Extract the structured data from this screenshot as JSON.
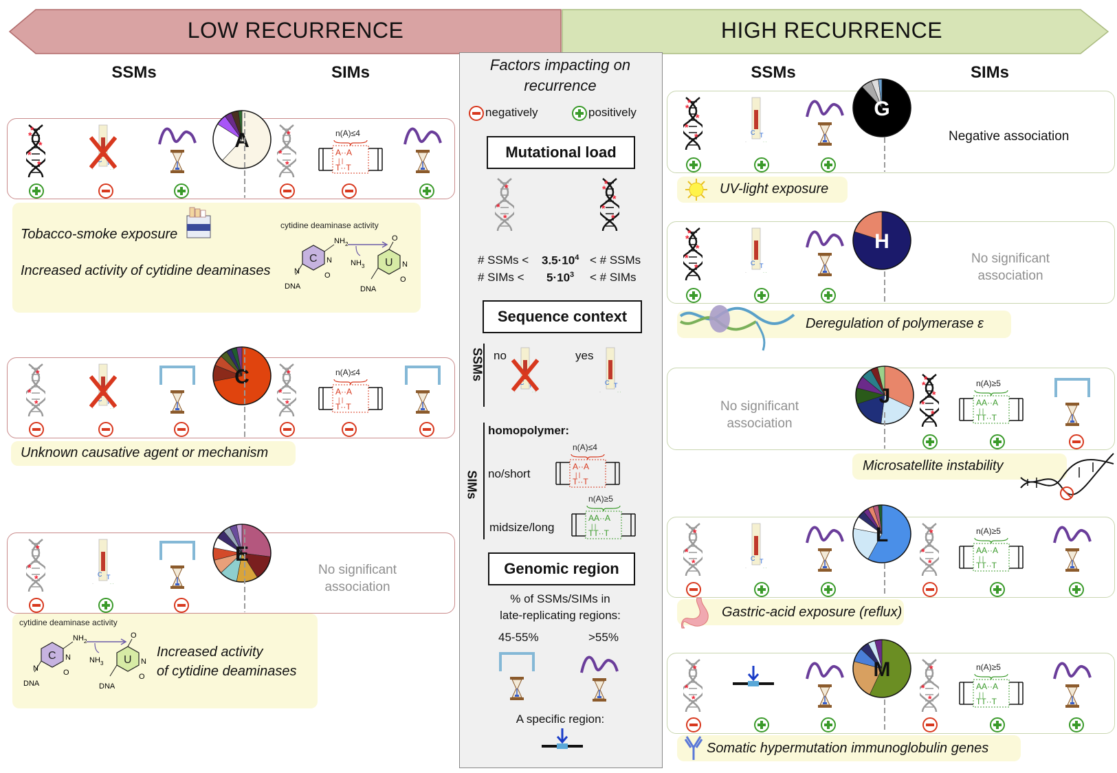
{
  "header": {
    "low": "LOW RECURRENCE",
    "high": "HIGH RECURRENCE"
  },
  "columns": {
    "ssms": "SSMs",
    "sims": "SIMs"
  },
  "colors": {
    "low_banner": "#d9a3a3",
    "high_banner": "#d7e4b6",
    "note_bg": "#fbf9d9",
    "pos": "#3a9a2a",
    "neg": "#d8381e",
    "wave": "#6a3d9a",
    "bracket": "#84b8d6"
  },
  "center": {
    "title": "Factors impacting on recurrence",
    "negatively": "negatively",
    "positively": "positively",
    "mutational_load": "Mutational load",
    "ml_ssms_left": "# SSMs <",
    "ml_ssms_value": "3.5·10",
    "ml_ssms_exp": "4",
    "ml_ssms_right": "< # SSMs",
    "ml_sims_left": "# SIMs  <",
    "ml_sims_value": "5·10",
    "ml_sims_exp": "3",
    "ml_sims_right": "< # SIMs",
    "sequence_context": "Sequence context",
    "ssms_label": "SSMs",
    "sims_label": "SIMs",
    "no": "no",
    "yes": "yes",
    "homopolymer": "homopolymer:",
    "no_short": "no/short",
    "midsize_long": "midsize/long",
    "genomic_region": "Genomic region",
    "gr_text1": "% of SSMs/SIMs in",
    "gr_text2": "late-replicating regions:",
    "range1": "45-55%",
    "range2": ">55%",
    "specific": "A specific region:"
  },
  "homopolymer": {
    "short_label": "n(A)≤4",
    "long_label": "n(A)≥5"
  },
  "signatures": {
    "A": {
      "letter": "A",
      "notes": [
        "Tobacco-smoke exposure",
        "Increased activity of cytidine deaminases"
      ],
      "chem_label": "cytidine deaminase activity",
      "pie": [
        {
          "value": 62,
          "color": "#faf5e6"
        },
        {
          "value": 22,
          "color": "#ffffff"
        },
        {
          "value": 6,
          "color": "#a855f7"
        },
        {
          "value": 4,
          "color": "#6b2a8a"
        },
        {
          "value": 4,
          "color": "#4a3020"
        },
        {
          "value": 2,
          "color": "#2e6b2e"
        }
      ]
    },
    "C": {
      "letter": "C",
      "notes": [
        "Unknown causative agent or mechanism"
      ],
      "pie": [
        {
          "value": 72,
          "color": "#e0440e"
        },
        {
          "value": 9,
          "color": "#8b2a1a"
        },
        {
          "value": 6,
          "color": "#c24a2a"
        },
        {
          "value": 4,
          "color": "#4a5d23"
        },
        {
          "value": 3,
          "color": "#2d2d6b"
        },
        {
          "value": 3,
          "color": "#1f5e2e"
        },
        {
          "value": 3,
          "color": "#7a3a8a"
        }
      ]
    },
    "E": {
      "letter": "E",
      "nosig": "No significant association",
      "notes": [
        "Increased activity of cytidine deaminases"
      ],
      "chem_label": "cytidine deaminase activity",
      "pie": [
        {
          "value": 27,
          "color": "#b4577e"
        },
        {
          "value": 14,
          "color": "#7a1f1f"
        },
        {
          "value": 12,
          "color": "#d9a43a"
        },
        {
          "value": 10,
          "color": "#8ecfcf"
        },
        {
          "value": 8,
          "color": "#e8a07a"
        },
        {
          "value": 7,
          "color": "#d34a2a"
        },
        {
          "value": 6,
          "color": "#ffffff"
        },
        {
          "value": 5,
          "color": "#3b2b6b"
        },
        {
          "value": 4,
          "color": "#9ab"
        },
        {
          "value": 4,
          "color": "#6a4c9c"
        },
        {
          "value": 3,
          "color": "#c9a3d9"
        }
      ]
    },
    "G": {
      "letter": "G",
      "sims_text": "Negative association",
      "notes": [
        "UV-light exposure"
      ],
      "pie": [
        {
          "value": 88,
          "color": "#000000"
        },
        {
          "value": 6,
          "color": "#aaaaaa"
        },
        {
          "value": 4,
          "color": "#dddddd"
        },
        {
          "value": 2,
          "color": "#6aa0d0"
        }
      ]
    },
    "H": {
      "letter": "H",
      "nosig": "No significant association",
      "notes": [
        "Deregulation of polymerase  ε"
      ],
      "pie": [
        {
          "value": 80,
          "color": "#1b1a6b"
        },
        {
          "value": 20,
          "color": "#e8866a"
        }
      ]
    },
    "J": {
      "letter": "J",
      "nosig": "No significant association",
      "notes": [
        "Microsatellite instability"
      ],
      "pie": [
        {
          "value": 32,
          "color": "#e8866a"
        },
        {
          "value": 20,
          "color": "#cfe8f7"
        },
        {
          "value": 18,
          "color": "#1f2f7a"
        },
        {
          "value": 9,
          "color": "#2a5a1a"
        },
        {
          "value": 7,
          "color": "#6b2a8a"
        },
        {
          "value": 6,
          "color": "#2a7f8a"
        },
        {
          "value": 4,
          "color": "#7a1f1f"
        },
        {
          "value": 4,
          "color": "#9bd28a"
        }
      ]
    },
    "L": {
      "letter": "L",
      "notes": [
        "Gastric-acid exposure (reflux)"
      ],
      "pie": [
        {
          "value": 58,
          "color": "#4a8fe8"
        },
        {
          "value": 20,
          "color": "#cfe8f7"
        },
        {
          "value": 7,
          "color": "#ffffff"
        },
        {
          "value": 4,
          "color": "#2d2d6b"
        },
        {
          "value": 3,
          "color": "#6b2a8a"
        },
        {
          "value": 3,
          "color": "#e8866a"
        },
        {
          "value": 3,
          "color": "#b4577e"
        },
        {
          "value": 2,
          "color": "#1f5e2e"
        }
      ]
    },
    "M": {
      "letter": "M",
      "notes": [
        "Somatic hypermutation immunoglobulin genes"
      ],
      "pie": [
        {
          "value": 57,
          "color": "#6b8e23"
        },
        {
          "value": 22,
          "color": "#d8a060"
        },
        {
          "value": 8,
          "color": "#4a7fd8"
        },
        {
          "value": 5,
          "color": "#2d2d6b"
        },
        {
          "value": 4,
          "color": "#cfe8f7"
        },
        {
          "value": 4,
          "color": "#6b2a8a"
        }
      ]
    }
  }
}
